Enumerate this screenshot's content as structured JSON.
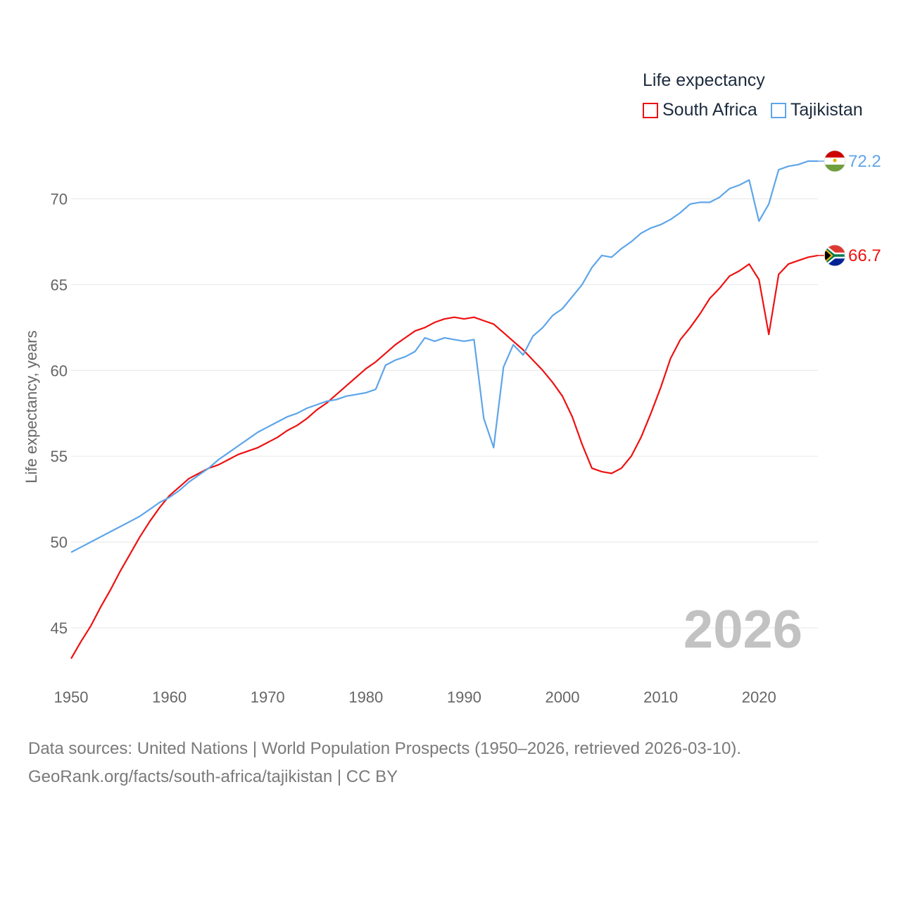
{
  "legend": {
    "title": "Life expectancy",
    "items": [
      {
        "name": "South Africa",
        "color": "#ee1111"
      },
      {
        "name": "Tajikistan",
        "color": "#5ea5ea"
      }
    ]
  },
  "footer": {
    "line1": "Data sources: United Nations | World Population Prospects (1950–2026, retrieved 2026-03-10).",
    "line2": "GeoRank.org/facts/south-africa/tajikistan | CC BY"
  },
  "chart_data": {
    "type": "line",
    "title": "Life expectancy",
    "xlabel": "",
    "ylabel": "Life expectancy, years",
    "xlim": [
      1950,
      2026
    ],
    "ylim": [
      42,
      74
    ],
    "x_ticks": [
      1950,
      1960,
      1970,
      1980,
      1990,
      2000,
      2010,
      2020
    ],
    "y_ticks": [
      45,
      50,
      55,
      60,
      65,
      70
    ],
    "grid": true,
    "watermark_year": "2026",
    "series": [
      {
        "name": "South Africa",
        "color": "#ee1111",
        "end_label": "66.7",
        "flag": "south-africa-flag-icon",
        "points": [
          [
            1950,
            43.2
          ],
          [
            1951,
            44.2
          ],
          [
            1952,
            45.1
          ],
          [
            1953,
            46.2
          ],
          [
            1954,
            47.2
          ],
          [
            1955,
            48.3
          ],
          [
            1956,
            49.3
          ],
          [
            1957,
            50.3
          ],
          [
            1958,
            51.2
          ],
          [
            1959,
            52.0
          ],
          [
            1960,
            52.7
          ],
          [
            1961,
            53.2
          ],
          [
            1962,
            53.7
          ],
          [
            1963,
            54.0
          ],
          [
            1964,
            54.3
          ],
          [
            1965,
            54.5
          ],
          [
            1966,
            54.8
          ],
          [
            1967,
            55.1
          ],
          [
            1968,
            55.3
          ],
          [
            1969,
            55.5
          ],
          [
            1970,
            55.8
          ],
          [
            1971,
            56.1
          ],
          [
            1972,
            56.5
          ],
          [
            1973,
            56.8
          ],
          [
            1974,
            57.2
          ],
          [
            1975,
            57.7
          ],
          [
            1976,
            58.1
          ],
          [
            1977,
            58.6
          ],
          [
            1978,
            59.1
          ],
          [
            1979,
            59.6
          ],
          [
            1980,
            60.1
          ],
          [
            1981,
            60.5
          ],
          [
            1982,
            61.0
          ],
          [
            1983,
            61.5
          ],
          [
            1984,
            61.9
          ],
          [
            1985,
            62.3
          ],
          [
            1986,
            62.5
          ],
          [
            1987,
            62.8
          ],
          [
            1988,
            63.0
          ],
          [
            1989,
            63.1
          ],
          [
            1990,
            63.0
          ],
          [
            1991,
            63.1
          ],
          [
            1992,
            62.9
          ],
          [
            1993,
            62.7
          ],
          [
            1994,
            62.2
          ],
          [
            1995,
            61.7
          ],
          [
            1996,
            61.2
          ],
          [
            1997,
            60.6
          ],
          [
            1998,
            60.0
          ],
          [
            1999,
            59.3
          ],
          [
            2000,
            58.5
          ],
          [
            2001,
            57.3
          ],
          [
            2002,
            55.7
          ],
          [
            2003,
            54.3
          ],
          [
            2004,
            54.1
          ],
          [
            2005,
            54.0
          ],
          [
            2006,
            54.3
          ],
          [
            2007,
            55.0
          ],
          [
            2008,
            56.1
          ],
          [
            2009,
            57.5
          ],
          [
            2010,
            59.0
          ],
          [
            2011,
            60.7
          ],
          [
            2012,
            61.8
          ],
          [
            2013,
            62.5
          ],
          [
            2014,
            63.3
          ],
          [
            2015,
            64.2
          ],
          [
            2016,
            64.8
          ],
          [
            2017,
            65.5
          ],
          [
            2018,
            65.8
          ],
          [
            2019,
            66.2
          ],
          [
            2020,
            65.3
          ],
          [
            2021,
            62.1
          ],
          [
            2022,
            65.6
          ],
          [
            2023,
            66.2
          ],
          [
            2024,
            66.4
          ],
          [
            2025,
            66.6
          ],
          [
            2026,
            66.7
          ]
        ]
      },
      {
        "name": "Tajikistan",
        "color": "#5ea5ea",
        "end_label": "72.2",
        "flag": "tajikistan-flag-icon",
        "points": [
          [
            1950,
            49.4
          ],
          [
            1951,
            49.7
          ],
          [
            1952,
            50.0
          ],
          [
            1953,
            50.3
          ],
          [
            1954,
            50.6
          ],
          [
            1955,
            50.9
          ],
          [
            1956,
            51.2
          ],
          [
            1957,
            51.5
          ],
          [
            1958,
            51.9
          ],
          [
            1959,
            52.3
          ],
          [
            1960,
            52.6
          ],
          [
            1961,
            53.0
          ],
          [
            1962,
            53.5
          ],
          [
            1963,
            53.9
          ],
          [
            1964,
            54.3
          ],
          [
            1965,
            54.8
          ],
          [
            1966,
            55.2
          ],
          [
            1967,
            55.6
          ],
          [
            1968,
            56.0
          ],
          [
            1969,
            56.4
          ],
          [
            1970,
            56.7
          ],
          [
            1971,
            57.0
          ],
          [
            1972,
            57.3
          ],
          [
            1973,
            57.5
          ],
          [
            1974,
            57.8
          ],
          [
            1975,
            58.0
          ],
          [
            1976,
            58.2
          ],
          [
            1977,
            58.3
          ],
          [
            1978,
            58.5
          ],
          [
            1979,
            58.6
          ],
          [
            1980,
            58.7
          ],
          [
            1981,
            58.9
          ],
          [
            1982,
            60.3
          ],
          [
            1983,
            60.6
          ],
          [
            1984,
            60.8
          ],
          [
            1985,
            61.1
          ],
          [
            1986,
            61.9
          ],
          [
            1987,
            61.7
          ],
          [
            1988,
            61.9
          ],
          [
            1989,
            61.8
          ],
          [
            1990,
            61.7
          ],
          [
            1991,
            61.8
          ],
          [
            1992,
            57.2
          ],
          [
            1993,
            55.5
          ],
          [
            1994,
            60.2
          ],
          [
            1995,
            61.5
          ],
          [
            1996,
            60.9
          ],
          [
            1997,
            62.0
          ],
          [
            1998,
            62.5
          ],
          [
            1999,
            63.2
          ],
          [
            2000,
            63.6
          ],
          [
            2001,
            64.3
          ],
          [
            2002,
            65.0
          ],
          [
            2003,
            66.0
          ],
          [
            2004,
            66.7
          ],
          [
            2005,
            66.6
          ],
          [
            2006,
            67.1
          ],
          [
            2007,
            67.5
          ],
          [
            2008,
            68.0
          ],
          [
            2009,
            68.3
          ],
          [
            2010,
            68.5
          ],
          [
            2011,
            68.8
          ],
          [
            2012,
            69.2
          ],
          [
            2013,
            69.7
          ],
          [
            2014,
            69.8
          ],
          [
            2015,
            69.8
          ],
          [
            2016,
            70.1
          ],
          [
            2017,
            70.6
          ],
          [
            2018,
            70.8
          ],
          [
            2019,
            71.1
          ],
          [
            2020,
            68.7
          ],
          [
            2021,
            69.7
          ],
          [
            2022,
            71.7
          ],
          [
            2023,
            71.9
          ],
          [
            2024,
            72.0
          ],
          [
            2025,
            72.2
          ],
          [
            2026,
            72.2
          ]
        ]
      }
    ]
  }
}
